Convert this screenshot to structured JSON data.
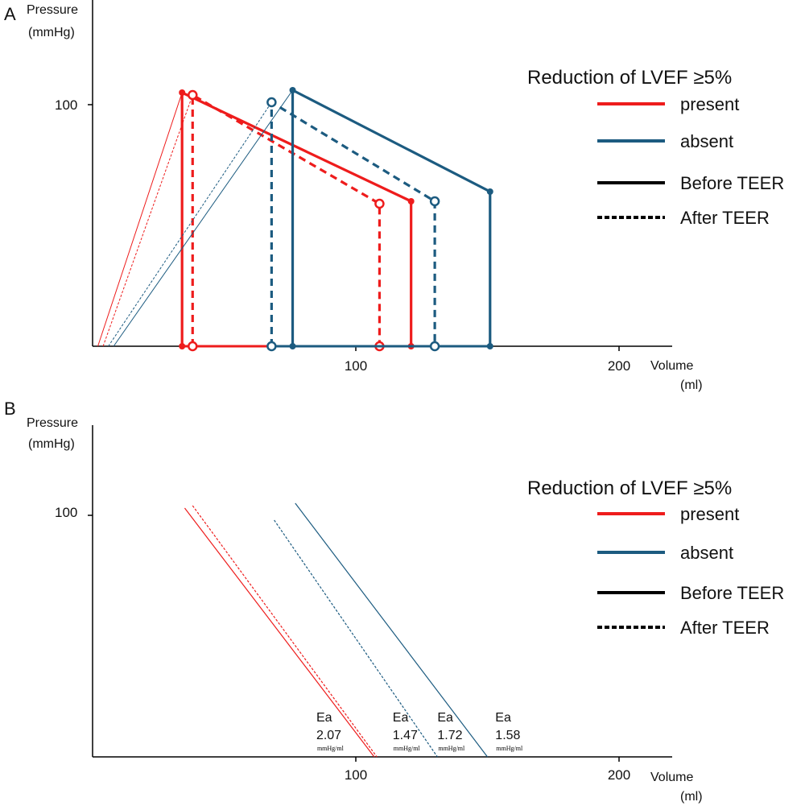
{
  "colors": {
    "present": "#ee1c1c",
    "absent": "#1c5b80",
    "axis": "#000000",
    "text": "#111111"
  },
  "chart_data": [
    {
      "panel_label": "A",
      "type": "line",
      "subtype": "pressure-volume loops",
      "ylabel_line1": "Pressure",
      "ylabel_line2": "(mmHg)",
      "xlabel_line1": "Volume",
      "xlabel_line2": "(ml)",
      "xlim": [
        0,
        220
      ],
      "ylim": [
        0,
        100
      ],
      "xticks": [
        {
          "value": 100,
          "label": "100"
        },
        {
          "value": 200,
          "label": "200"
        }
      ],
      "yticks": [
        {
          "value": 100,
          "label": "100"
        }
      ],
      "legend": {
        "title": "Reduction of LVEF ≥5%",
        "placement": "right",
        "entries": [
          {
            "label": "present",
            "kind": "color",
            "color": "present"
          },
          {
            "label": "absent",
            "kind": "color",
            "color": "absent"
          },
          {
            "label": "Before TEER",
            "kind": "solid"
          },
          {
            "label": "After TEER",
            "kind": "dashed"
          }
        ]
      },
      "loops": [
        {
          "group": "present",
          "timing": "Before TEER",
          "style": "solid",
          "esv": 34,
          "edv": 121,
          "es_pressure": 105,
          "ed_pressure": 60,
          "v0": 2
        },
        {
          "group": "present",
          "timing": "After TEER",
          "style": "dashed",
          "esv": 38,
          "edv": 109,
          "es_pressure": 104,
          "ed_pressure": 59,
          "v0": 4
        },
        {
          "group": "absent",
          "timing": "Before TEER",
          "style": "solid",
          "esv": 76,
          "edv": 151,
          "es_pressure": 106,
          "ed_pressure": 64,
          "v0": 8
        },
        {
          "group": "absent",
          "timing": "After TEER",
          "style": "dashed",
          "esv": 68,
          "edv": 130,
          "es_pressure": 101,
          "ed_pressure": 60,
          "v0": 6
        }
      ]
    },
    {
      "panel_label": "B",
      "type": "line",
      "subtype": "arterial elastance (Ea) lines",
      "ylabel_line1": "Pressure",
      "ylabel_line2": "(mmHg)",
      "xlabel_line1": "Volume",
      "xlabel_line2": "(ml)",
      "xlim": [
        0,
        220
      ],
      "ylim": [
        0,
        100
      ],
      "xticks": [
        {
          "value": 100,
          "label": "100"
        },
        {
          "value": 200,
          "label": "200"
        }
      ],
      "yticks": [
        {
          "value": 100,
          "label": "100"
        }
      ],
      "legend": {
        "title": "Reduction of LVEF ≥5%",
        "placement": "right",
        "entries": [
          {
            "label": "present",
            "kind": "color",
            "color": "present"
          },
          {
            "label": "absent",
            "kind": "color",
            "color": "absent"
          },
          {
            "label": "Before TEER",
            "kind": "solid"
          },
          {
            "label": "After TEER",
            "kind": "dashed"
          }
        ]
      },
      "ea_lines": [
        {
          "group": "present",
          "timing": "Before TEER",
          "style": "solid",
          "start": [
            35,
            103
          ],
          "end": [
            107,
            0
          ]
        },
        {
          "group": "present",
          "timing": "After TEER",
          "style": "dashed",
          "start": [
            38,
            104
          ],
          "end": [
            108,
            0
          ]
        },
        {
          "group": "absent",
          "timing": "After TEER",
          "style": "dashed",
          "start": [
            69,
            98
          ],
          "end": [
            131,
            0
          ]
        },
        {
          "group": "absent",
          "timing": "Before TEER",
          "style": "solid",
          "start": [
            77,
            105
          ],
          "end": [
            150,
            0
          ]
        }
      ],
      "ea_labels": [
        {
          "name": "Ea",
          "value": "2.07",
          "unit": "mmHg/ml",
          "x": 85
        },
        {
          "name": "Ea",
          "value": "1.47",
          "unit": "mmHg/ml",
          "x": 114
        },
        {
          "name": "Ea",
          "value": "1.72",
          "unit": "mmHg/ml",
          "x": 131
        },
        {
          "name": "Ea",
          "value": "1.58",
          "unit": "mmHg/ml",
          "x": 153
        }
      ]
    }
  ]
}
